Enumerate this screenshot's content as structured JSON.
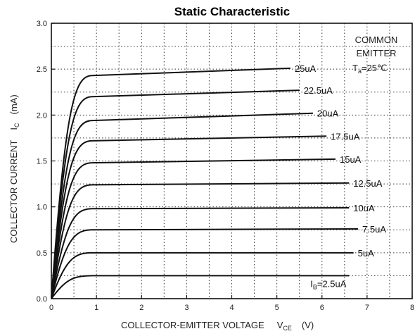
{
  "chart_data": {
    "type": "line",
    "title": "Static Characteristic",
    "xlabel": "COLLECTOR-EMITTER VOLTAGE",
    "xlabel_symbol": "V",
    "xlabel_subscript": "CE",
    "xlabel_unit": "(V)",
    "ylabel": "COLLECTOR CURRENT",
    "ylabel_symbol": "I",
    "ylabel_subscript": "C",
    "ylabel_unit": "(mA)",
    "xlim": [
      0,
      8
    ],
    "ylim": [
      0,
      3.0
    ],
    "x_ticks": [
      "0",
      "1",
      "2",
      "3",
      "4",
      "5",
      "6",
      "7",
      "8"
    ],
    "y_ticks": [
      "0.0",
      "0.5",
      "1.0",
      "1.5",
      "2.0",
      "2.5",
      "3.0"
    ],
    "grid": "dotted",
    "annotation": {
      "line1": "COMMON",
      "line2": "EMITTER",
      "line3_symbol": "T",
      "line3_subscript": "a",
      "line3_value": "=25℃"
    },
    "series": [
      {
        "name": "I",
        "label_subscript": "B",
        "label_value": "=2.5uA",
        "values": [
          [
            0,
            0
          ],
          [
            0.9,
            0.25
          ],
          [
            6.6,
            0.25
          ]
        ]
      },
      {
        "name": "5uA",
        "values": [
          [
            0,
            0
          ],
          [
            0.9,
            0.5
          ],
          [
            6.7,
            0.5
          ]
        ]
      },
      {
        "name": "7.5uA",
        "values": [
          [
            0,
            0
          ],
          [
            0.9,
            0.75
          ],
          [
            6.8,
            0.76
          ]
        ]
      },
      {
        "name": "10uA",
        "values": [
          [
            0,
            0
          ],
          [
            0.9,
            0.98
          ],
          [
            6.6,
            0.99
          ]
        ]
      },
      {
        "name": "12.5uA",
        "values": [
          [
            0,
            0
          ],
          [
            0.9,
            1.24
          ],
          [
            6.6,
            1.26
          ]
        ]
      },
      {
        "name": "15uA",
        "values": [
          [
            0,
            0
          ],
          [
            0.9,
            1.48
          ],
          [
            6.3,
            1.52
          ]
        ]
      },
      {
        "name": "17.5uA",
        "values": [
          [
            0,
            0
          ],
          [
            0.9,
            1.72
          ],
          [
            6.1,
            1.77
          ]
        ]
      },
      {
        "name": "20uA",
        "values": [
          [
            0,
            0
          ],
          [
            0.9,
            1.94
          ],
          [
            5.8,
            2.02
          ]
        ]
      },
      {
        "name": "22.5uA",
        "values": [
          [
            0,
            0
          ],
          [
            0.9,
            2.2
          ],
          [
            5.5,
            2.27
          ]
        ]
      },
      {
        "name": "25uA",
        "values": [
          [
            0,
            0
          ],
          [
            0.9,
            2.43
          ],
          [
            5.3,
            2.51
          ]
        ]
      }
    ]
  }
}
